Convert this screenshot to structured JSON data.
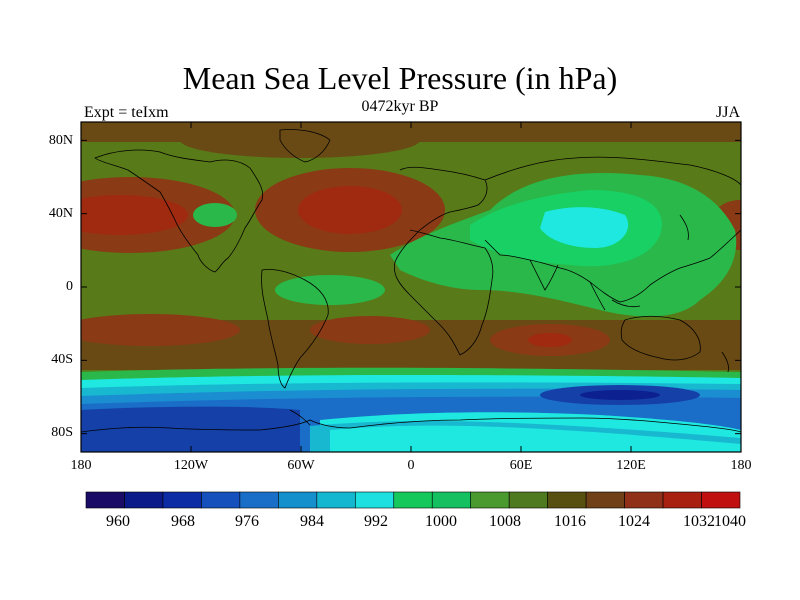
{
  "title": "Mean Sea Level Pressure (in hPa)",
  "subtitle": "0472kyr BP",
  "left_label": "Expt = teIxm",
  "right_label": "JJA",
  "lat_ticks": [
    "80N",
    "40N",
    "0",
    "40S",
    "80S"
  ],
  "lon_ticks": [
    "180",
    "120W",
    "60W",
    "0",
    "60E",
    "120E",
    "180"
  ],
  "colorbar": {
    "labels": [
      "960",
      "968",
      "976",
      "984",
      "992",
      "1000",
      "1008",
      "1016",
      "1024",
      "1032",
      "1040"
    ],
    "colors": [
      "#1a0c66",
      "#0a1a88",
      "#0a2ba3",
      "#1550bd",
      "#1a6ec8",
      "#1690cc",
      "#15b6d0",
      "#1fe0e0",
      "#14c85c",
      "#14c060",
      "#4a9a30",
      "#507a20",
      "#585010",
      "#704018",
      "#903018",
      "#a82010",
      "#c01010"
    ]
  },
  "palette": {
    "ocean_base": "#587a18",
    "high_pressure": "#8a3a14",
    "high_core": "#a02a10",
    "mid_high": "#6a4a14",
    "green_low": "#2ab84a",
    "bright_green": "#18d064",
    "cyan_low": "#1fe8e0",
    "teal": "#17b8d0",
    "blue1": "#1a8ed0",
    "blue2": "#1a6ec8",
    "deep_blue": "#1540a8",
    "darkest": "#0c2090",
    "coast": "#000000"
  }
}
